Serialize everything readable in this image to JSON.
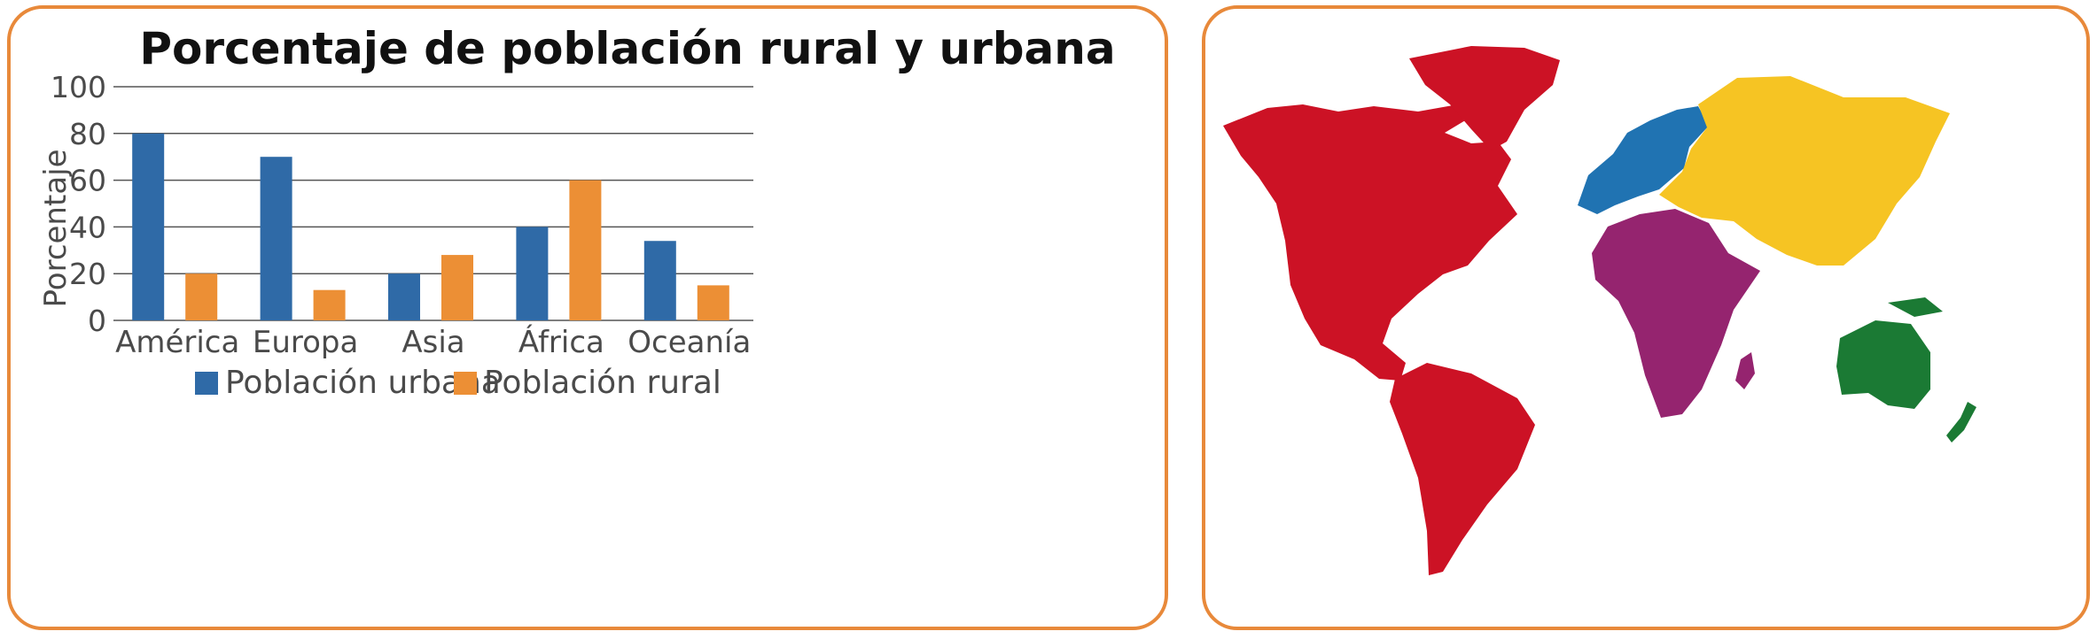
{
  "chart_data": {
    "type": "bar",
    "title": "Porcentaje de población rural y urbana",
    "ylabel": "Porcentaje",
    "xlabel": "",
    "categories": [
      "América",
      "Europa",
      "Asia",
      "África",
      "Oceanía"
    ],
    "series": [
      {
        "name": "Población urbana",
        "values": [
          80,
          70,
          20,
          40,
          34
        ],
        "color": "#2f6aa7"
      },
      {
        "name": "Población rural",
        "values": [
          20,
          13,
          28,
          60,
          15
        ],
        "color": "#ec8f35"
      }
    ],
    "ylim": [
      0,
      100
    ],
    "yticks": [
      0,
      20,
      40,
      60,
      80,
      100
    ],
    "grid": true,
    "legend": "bottom"
  },
  "map": {
    "regions": [
      {
        "name": "america",
        "color": "#cc1225"
      },
      {
        "name": "europe",
        "color": "#2073b2"
      },
      {
        "name": "asia",
        "color": "#f6c423"
      },
      {
        "name": "africa",
        "color": "#95246f"
      },
      {
        "name": "oceania",
        "color": "#1b7a34"
      }
    ]
  },
  "colors": {
    "border": "#e8893a",
    "grid": "#555555"
  }
}
